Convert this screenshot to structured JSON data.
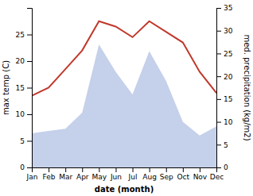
{
  "chart_data": {
    "type": "line",
    "categories": [
      "Jan",
      "Feb",
      "Mar",
      "Apr",
      "May",
      "Jun",
      "Jul",
      "Aug",
      "Sep",
      "Oct",
      "Nov",
      "Dec"
    ],
    "xlabel": "date (month)",
    "ylabel": "max temp (C)",
    "y2label": "med. precipitation (kg/m2)",
    "series": [
      {
        "type": "area",
        "axis": "y2",
        "color": "#c5d0ea",
        "values": [
          7.5,
          8.0,
          8.5,
          12.0,
          27.0,
          21.0,
          16.0,
          25.5,
          19.0,
          10.0,
          7.0,
          9.0
        ]
      },
      {
        "type": "line",
        "color": "#c0392b",
        "values": [
          13.5,
          15.0,
          18.5,
          22.0,
          27.5,
          26.5,
          24.5,
          27.5,
          25.5,
          23.5,
          18.0,
          14.0
        ]
      }
    ],
    "ylim": [
      0,
      30
    ],
    "yticks": [
      0,
      5,
      10,
      15,
      20,
      25
    ],
    "y2lim": [
      0,
      35
    ],
    "y2ticks": [
      0,
      5,
      10,
      15,
      20,
      25,
      30,
      35
    ]
  }
}
